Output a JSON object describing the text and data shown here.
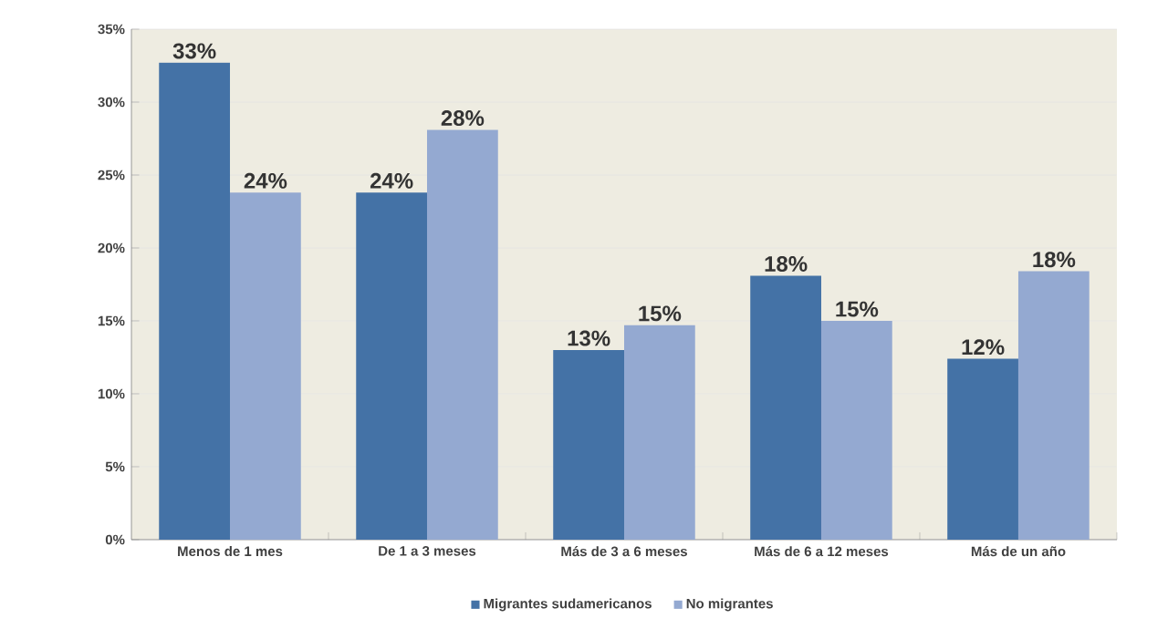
{
  "chart_data": {
    "type": "bar",
    "categories": [
      "Menos de 1 mes",
      "De 1 a 3 meses",
      "Más de 3 a 6 meses",
      "Más de 6 a 12 meses",
      "Más de un año"
    ],
    "series": [
      {
        "name": "Migrantes sudamericanos",
        "color": "#4472a6",
        "values": [
          32.7,
          23.8,
          13.0,
          18.1,
          12.4
        ],
        "value_labels": [
          "33%",
          "24%",
          "13%",
          "18%",
          "12%"
        ]
      },
      {
        "name": "No migrantes",
        "color": "#94a9d1",
        "values": [
          23.8,
          28.1,
          14.7,
          15.0,
          18.4
        ],
        "value_labels": [
          "24%",
          "28%",
          "15%",
          "15%",
          "18%"
        ]
      }
    ],
    "ylim": [
      0,
      35
    ],
    "yticks": [
      {
        "value": 0,
        "label": "0%"
      },
      {
        "value": 5,
        "label": "5%"
      },
      {
        "value": 10,
        "label": "10%"
      },
      {
        "value": 15,
        "label": "15%"
      },
      {
        "value": 20,
        "label": "20%"
      },
      {
        "value": 25,
        "label": "25%"
      },
      {
        "value": 30,
        "label": "30%"
      },
      {
        "value": 35,
        "label": "35%"
      }
    ],
    "grid": "y",
    "legend": "bottom"
  }
}
